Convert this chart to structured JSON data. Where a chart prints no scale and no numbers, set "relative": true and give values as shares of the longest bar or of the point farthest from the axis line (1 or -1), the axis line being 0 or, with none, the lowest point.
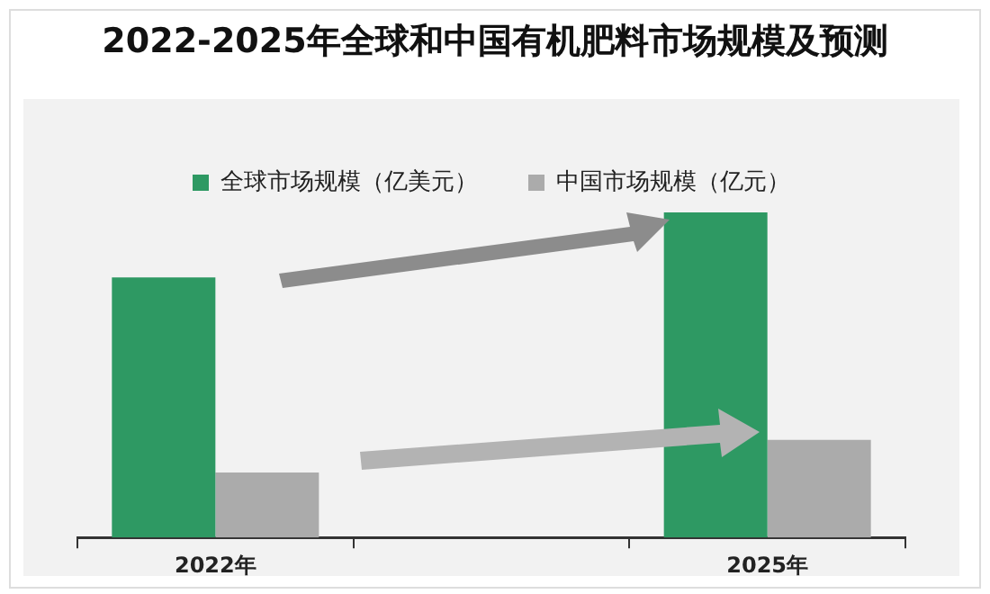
{
  "chart_data": {
    "type": "bar",
    "title": "2022-2025年全球和中国有机肥料市场规模及预测",
    "categories": [
      "2022年",
      null,
      "2025年"
    ],
    "relative": true,
    "legend": "top",
    "grid": false,
    "series": [
      {
        "name": "全球市场规模（亿美元）",
        "color": "#2e9963",
        "values": [
          0.8,
          null,
          1
        ]
      },
      {
        "name": "中国市场规模（亿元）",
        "color": "#ababab",
        "values": [
          0.2,
          null,
          0.3
        ]
      }
    ]
  }
}
